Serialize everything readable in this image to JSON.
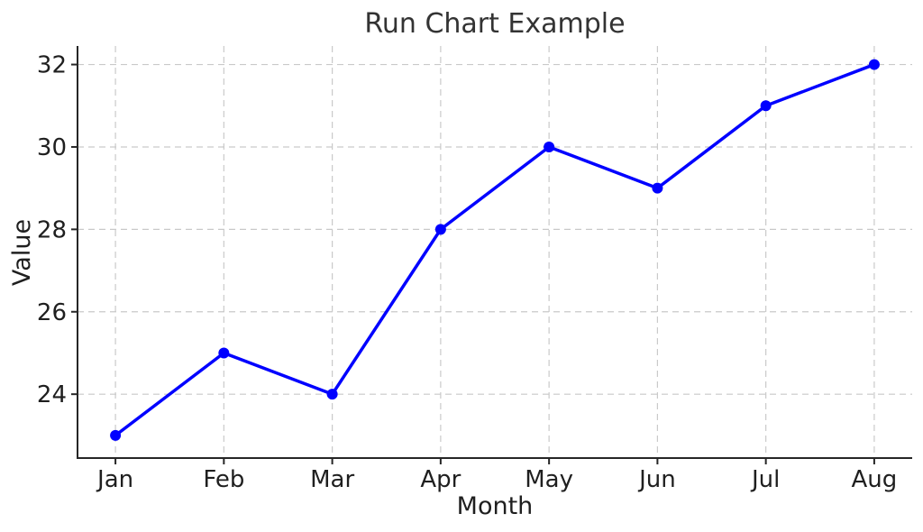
{
  "chart_data": {
    "type": "line",
    "title": "Run Chart Example",
    "xlabel": "Month",
    "ylabel": "Value",
    "categories": [
      "Jan",
      "Feb",
      "Mar",
      "Apr",
      "May",
      "Jun",
      "Jul",
      "Aug"
    ],
    "series": [
      {
        "name": "Value",
        "values": [
          23,
          25,
          24,
          28,
          30,
          29,
          31,
          32
        ],
        "color": "#0000ff",
        "marker": "circle",
        "line_width": 3.5,
        "marker_radius": 6
      }
    ],
    "y_ticks": [
      24,
      26,
      28,
      30,
      32
    ],
    "ylim": [
      22.45,
      32.45
    ],
    "xlim": [
      -0.35,
      7.35
    ],
    "grid": true,
    "grid_line_style": "dashed",
    "legend_position": "none",
    "colors": {
      "grid": "#c9c9c9",
      "spine": "#262626",
      "tick_text": "#1f1f1f",
      "title_text": "#333333",
      "background": "#ffffff"
    }
  }
}
